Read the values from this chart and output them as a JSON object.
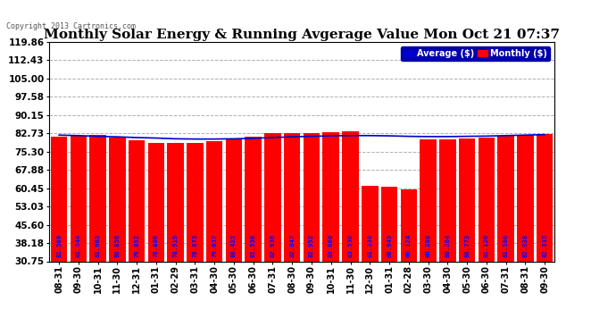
{
  "title": "Monthly Solar Energy & Running Avgerage Value Mon Oct 21 07:37",
  "copyright": "Copyright 2013 Cartronics.com",
  "categories": [
    "08-31",
    "09-30",
    "10-31",
    "11-30",
    "12-31",
    "01-31",
    "02-29",
    "03-31",
    "04-30",
    "05-30",
    "06-30",
    "07-31",
    "08-30",
    "09-30",
    "10-31",
    "11-30",
    "12-30",
    "01-31",
    "02-28",
    "03-30",
    "04-30",
    "05-30",
    "06-30",
    "07-31",
    "08-31",
    "09-30"
  ],
  "bar_values": [
    81.509,
    81.544,
    81.965,
    80.856,
    79.892,
    78.88,
    78.919,
    78.873,
    79.637,
    80.425,
    81.53,
    82.936,
    82.847,
    82.952,
    83.066,
    83.53,
    61.338,
    60.945,
    60.124,
    80.288,
    80.364,
    80.773,
    81.126,
    81.586,
    82.038,
    82.333
  ],
  "avg_values": [
    82.0,
    81.8,
    81.5,
    81.3,
    81.0,
    80.8,
    80.5,
    80.4,
    80.4,
    80.5,
    80.7,
    81.0,
    81.3,
    81.5,
    81.7,
    81.8,
    81.8,
    81.7,
    81.5,
    81.4,
    81.4,
    81.5,
    81.6,
    81.8,
    82.0,
    82.2
  ],
  "bar_color": "#ff0000",
  "avg_color": "#0000cc",
  "bar_label_color": "#0000ff",
  "ylim_min": 30.75,
  "ylim_max": 119.86,
  "yticks": [
    30.75,
    38.18,
    45.6,
    53.03,
    60.45,
    67.88,
    75.3,
    82.73,
    90.15,
    97.58,
    105.0,
    112.43,
    119.86
  ],
  "background_color": "#ffffff",
  "grid_color": "#b0b0b0",
  "title_fontsize": 11,
  "legend_avg_label": "Average ($)",
  "legend_monthly_label": "Monthly ($)",
  "bar_fontsize": 5.2,
  "figsize": [
    6.9,
    3.75
  ],
  "dpi": 100
}
